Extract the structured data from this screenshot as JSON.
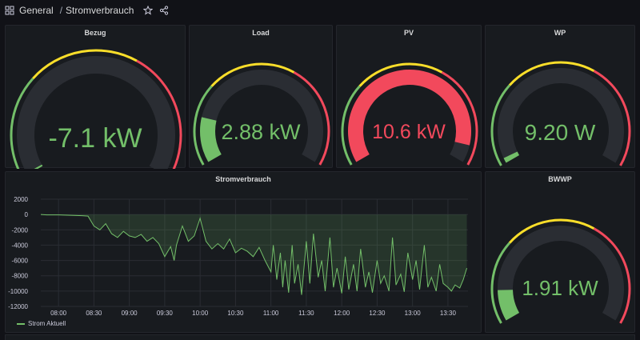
{
  "header": {
    "folder": "General",
    "separator": "/",
    "title": "Stromverbrauch"
  },
  "colors": {
    "green": "#73bf69",
    "yellow": "#fade2a",
    "red": "#f2495c",
    "track": "#2a2d33"
  },
  "gauges": [
    {
      "id": "bezug",
      "title": "Bezug",
      "value": "-7.1 kW",
      "fill": 0.0,
      "color": "green"
    },
    {
      "id": "load",
      "title": "Load",
      "value": "2.88 kW",
      "fill": 0.18,
      "color": "green"
    },
    {
      "id": "pv",
      "title": "PV",
      "value": "10.6 kW",
      "fill": 0.93,
      "color": "red"
    },
    {
      "id": "wp",
      "title": "WP",
      "value": "9.20 W",
      "fill": 0.02,
      "color": "green"
    },
    {
      "id": "bwwp",
      "title": "BWWP",
      "value": "1.91 kW",
      "fill": 0.12,
      "color": "green"
    }
  ],
  "chart_panel": {
    "title": "Stromverbrauch",
    "legend": "Strom Aktuell"
  },
  "chart_data": {
    "type": "area",
    "ylim": [
      -12000,
      2000
    ],
    "yticks": [
      "2000",
      "0",
      "-2000",
      "-4000",
      "-6000",
      "-8000",
      "-10000",
      "-12000"
    ],
    "ytick_values": [
      2000,
      0,
      -2000,
      -4000,
      -6000,
      -8000,
      -10000,
      -12000
    ],
    "xticks": [
      "08:00",
      "08:30",
      "09:00",
      "09:30",
      "10:00",
      "10:30",
      "11:00",
      "11:30",
      "12:00",
      "12:30",
      "13:00",
      "13:30"
    ],
    "xtick_minutes": [
      480,
      510,
      540,
      570,
      600,
      630,
      660,
      690,
      720,
      750,
      780,
      810
    ],
    "xlim": [
      465,
      827
    ],
    "series": [
      {
        "name": "Strom Aktuell",
        "x": [
          465,
          470,
          480,
          490,
          500,
          505,
          510,
          515,
          520,
          525,
          530,
          535,
          540,
          545,
          550,
          555,
          560,
          565,
          570,
          575,
          578,
          580,
          585,
          590,
          595,
          600,
          605,
          610,
          615,
          620,
          625,
          630,
          635,
          640,
          645,
          650,
          655,
          660,
          662,
          665,
          668,
          670,
          672,
          675,
          678,
          680,
          683,
          686,
          690,
          693,
          696,
          700,
          703,
          706,
          710,
          713,
          716,
          720,
          723,
          726,
          730,
          733,
          736,
          740,
          743,
          746,
          750,
          753,
          756,
          760,
          763,
          766,
          770,
          773,
          776,
          780,
          783,
          786,
          790,
          793,
          796,
          800,
          803,
          806,
          810,
          813,
          816,
          820,
          823,
          826
        ],
        "y": [
          0,
          -50,
          -50,
          -100,
          -150,
          -200,
          -1500,
          -2000,
          -1200,
          -2500,
          -3000,
          -2200,
          -2800,
          -3000,
          -2600,
          -3500,
          -3000,
          -3800,
          -5500,
          -4200,
          -6000,
          -4000,
          -1500,
          -3500,
          -2800,
          -500,
          -3500,
          -4500,
          -3800,
          -4500,
          -3200,
          -5000,
          -4400,
          -4800,
          -5500,
          -4300,
          -6000,
          -7500,
          -4000,
          -8500,
          -5000,
          -9500,
          -6000,
          -10200,
          -4000,
          -9000,
          -6500,
          -10500,
          -3500,
          -9000,
          -2500,
          -8200,
          -6000,
          -10000,
          -3000,
          -9500,
          -7000,
          -10300,
          -5500,
          -9800,
          -6500,
          -10000,
          -4500,
          -9500,
          -7500,
          -10200,
          -6000,
          -9000,
          -8000,
          -10000,
          -3000,
          -9200,
          -7800,
          -10100,
          -5000,
          -8500,
          -6000,
          -9800,
          -4000,
          -9500,
          -8200,
          -10000,
          -6500,
          -9000,
          -9500,
          -10000,
          -9200,
          -9600,
          -8500,
          -7000
        ]
      }
    ]
  }
}
